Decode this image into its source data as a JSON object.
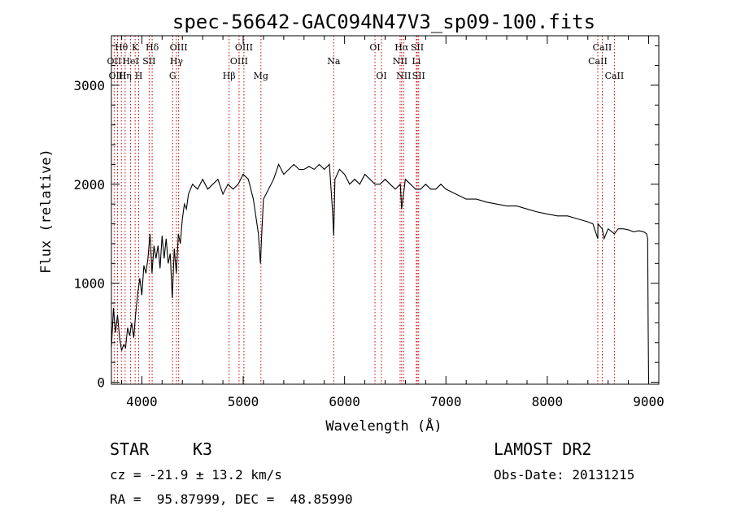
{
  "chart_data": {
    "type": "line",
    "title": "spec-56642-GAC094N47V3_sp09-100.fits",
    "xlabel": "Wavelength (Å)",
    "ylabel": "Flux (relative)",
    "xlim": [
      3700,
      9100
    ],
    "ylim": [
      -20,
      3500
    ],
    "xticks": [
      4000,
      5000,
      6000,
      7000,
      8000,
      9000
    ],
    "xtick_labels": [
      "4000",
      "5000",
      "6000",
      "7000",
      "8000",
      "9000"
    ],
    "yticks": [
      0,
      1000,
      2000,
      3000
    ],
    "ytick_labels": [
      "0",
      "1000",
      "2000",
      "3000"
    ],
    "grid": false,
    "line_color": "#000000",
    "marker_color": "#cc0000",
    "series": [
      {
        "x": [
          3700,
          3720,
          3740,
          3760,
          3780,
          3800,
          3820,
          3840,
          3860,
          3880,
          3900,
          3920,
          3940,
          3960,
          3980,
          4000,
          4020,
          4040,
          4060,
          4080,
          4100,
          4120,
          4140,
          4160,
          4180,
          4200,
          4220,
          4240,
          4260,
          4280,
          4300,
          4320,
          4340,
          4360,
          4380,
          4400,
          4420,
          4440,
          4460,
          4480,
          4500,
          4550,
          4600,
          4650,
          4700,
          4750,
          4800,
          4850,
          4900,
          4950,
          5000,
          5050,
          5100,
          5150,
          5170,
          5185,
          5200,
          5250,
          5300,
          5350,
          5400,
          5450,
          5500,
          5550,
          5600,
          5650,
          5700,
          5750,
          5800,
          5850,
          5880,
          5893,
          5905,
          5950,
          6000,
          6050,
          6100,
          6150,
          6200,
          6250,
          6300,
          6350,
          6400,
          6450,
          6500,
          6550,
          6563,
          6600,
          6650,
          6700,
          6750,
          6800,
          6850,
          6900,
          6950,
          7000,
          7100,
          7200,
          7300,
          7400,
          7500,
          7600,
          7700,
          7800,
          7900,
          8000,
          8100,
          8200,
          8300,
          8400,
          8450,
          8498,
          8500,
          8542,
          8560,
          8600,
          8662,
          8700,
          8750,
          8800,
          8850,
          8900,
          8950,
          8980,
          8990,
          8995,
          9000
        ],
        "y": [
          350,
          750,
          500,
          680,
          450,
          320,
          380,
          350,
          550,
          470,
          600,
          450,
          700,
          900,
          1050,
          880,
          1180,
          1100,
          1250,
          1500,
          1100,
          1380,
          1250,
          1380,
          1150,
          1480,
          1250,
          1450,
          1200,
          1300,
          850,
          1350,
          1100,
          1500,
          1400,
          1650,
          1800,
          1750,
          1900,
          1950,
          2000,
          1950,
          2050,
          1950,
          2000,
          2050,
          1900,
          2000,
          1950,
          2000,
          2100,
          2050,
          1850,
          1500,
          1200,
          1550,
          1850,
          1950,
          2050,
          2200,
          2100,
          2150,
          2200,
          2150,
          2150,
          2180,
          2150,
          2200,
          2150,
          2200,
          1750,
          1480,
          2050,
          2150,
          2100,
          2000,
          2050,
          2000,
          2100,
          2050,
          2000,
          2000,
          2050,
          2000,
          1950,
          2000,
          1750,
          2050,
          2000,
          1950,
          1950,
          2000,
          1950,
          1950,
          2000,
          1950,
          1900,
          1850,
          1850,
          1820,
          1800,
          1780,
          1780,
          1750,
          1720,
          1700,
          1680,
          1680,
          1650,
          1620,
          1600,
          1450,
          1600,
          1550,
          1450,
          1550,
          1500,
          1550,
          1550,
          1540,
          1520,
          1530,
          1520,
          1500,
          1450,
          600,
          0
        ]
      }
    ],
    "lines": [
      {
        "name": "Hθ",
        "x": 3798,
        "row": 1
      },
      {
        "name": "OII",
        "x": 3727,
        "row": 2
      },
      {
        "name": "OIII",
        "x": 3760,
        "row": 3
      },
      {
        "name": "K",
        "x": 3934,
        "row": 1
      },
      {
        "name": "HeI",
        "x": 3889,
        "row": 2
      },
      {
        "name": "Hη",
        "x": 3835,
        "row": 3
      },
      {
        "name": "SII",
        "x": 4072,
        "row": 2
      },
      {
        "name": "H",
        "x": 3969,
        "row": 3
      },
      {
        "name": "Hδ",
        "x": 4102,
        "row": 1
      },
      {
        "name": "OIII",
        "x": 4363,
        "row": 1
      },
      {
        "name": "Hγ",
        "x": 4341,
        "row": 2
      },
      {
        "name": "G",
        "x": 4304,
        "row": 3
      },
      {
        "name": "Hβ",
        "x": 4861,
        "row": 3
      },
      {
        "name": "OIII",
        "x": 5007,
        "row": 1
      },
      {
        "name": "OIII",
        "x": 4959,
        "row": 2
      },
      {
        "name": "Mg",
        "x": 5175,
        "row": 3
      },
      {
        "name": "Na",
        "x": 5893,
        "row": 2
      },
      {
        "name": "OI",
        "x": 6300,
        "row": 1
      },
      {
        "name": "OI",
        "x": 6364,
        "row": 3
      },
      {
        "name": "Hα",
        "x": 6563,
        "row": 1
      },
      {
        "name": "NII",
        "x": 6548,
        "row": 2
      },
      {
        "name": "NII",
        "x": 6583,
        "row": 3
      },
      {
        "name": "SII",
        "x": 6717,
        "row": 1
      },
      {
        "name": "Li",
        "x": 6708,
        "row": 2
      },
      {
        "name": "SII",
        "x": 6731,
        "row": 3
      },
      {
        "name": "CaII",
        "x": 8542,
        "row": 1
      },
      {
        "name": "CaII",
        "x": 8498,
        "row": 2
      },
      {
        "name": "CaII",
        "x": 8662,
        "row": 3
      }
    ]
  },
  "info": {
    "class_label": "STAR",
    "subclass": "K3",
    "survey": "LAMOST DR2",
    "cz": "cz = -21.9 ± 13.2 km/s",
    "obs_date": "Obs-Date: 20131215",
    "coords": "RA =  95.87999, DEC =  48.85990"
  }
}
